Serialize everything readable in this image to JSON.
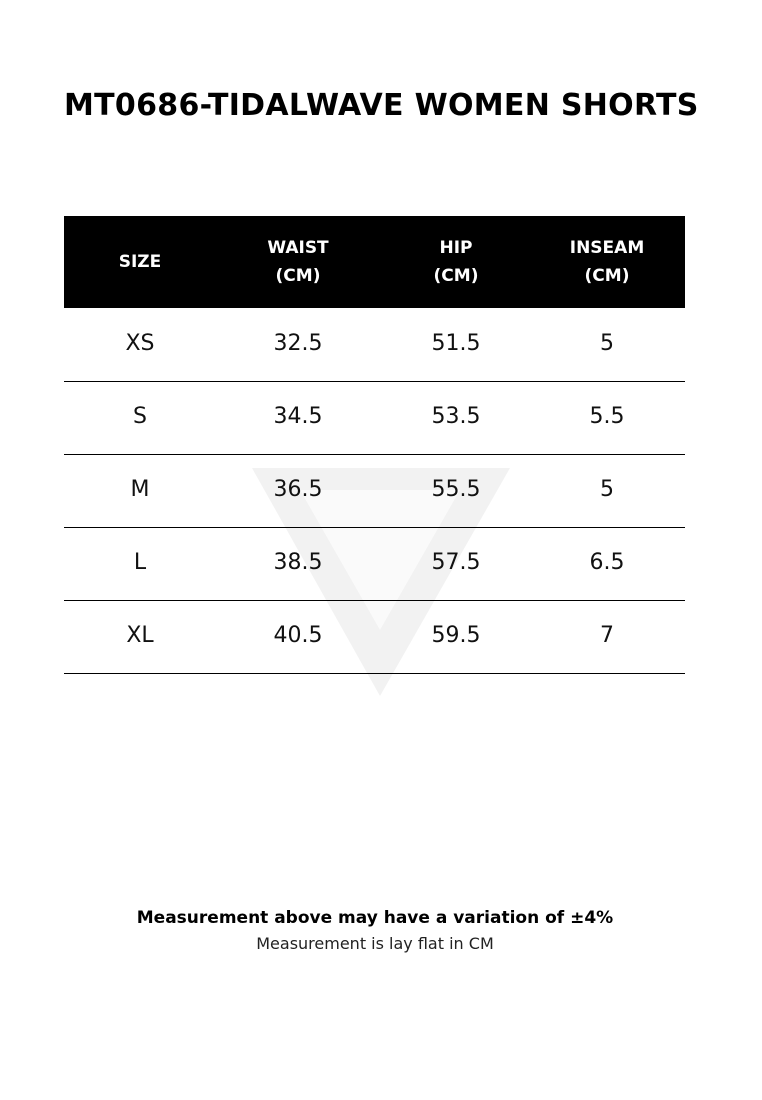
{
  "title": "MT0686-TIDALWAVE WOMEN SHORTS",
  "table": {
    "header": [
      [
        "SIZE"
      ],
      [
        "WAIST",
        "(CM)"
      ],
      [
        "HIP",
        "(CM)"
      ],
      [
        "INSEAM",
        "(CM)"
      ]
    ],
    "rows": [
      [
        "XS",
        "32.5",
        "51.5",
        "5"
      ],
      [
        "S",
        "34.5",
        "53.5",
        "5.5"
      ],
      [
        "M",
        "36.5",
        "55.5",
        "5"
      ],
      [
        "L",
        "38.5",
        "57.5",
        "6.5"
      ],
      [
        "XL",
        "40.5",
        "59.5",
        "7"
      ]
    ]
  },
  "footer": {
    "note": "Measurement above may have a variation of ±4%",
    "subnote": "Measurement is lay flat in CM"
  }
}
